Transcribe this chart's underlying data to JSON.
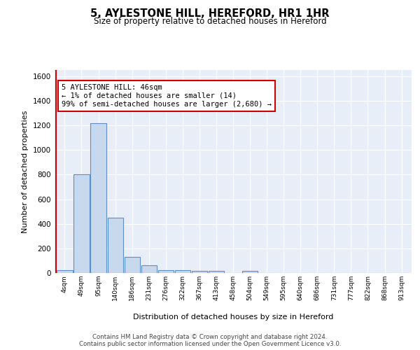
{
  "title": "5, AYLESTONE HILL, HEREFORD, HR1 1HR",
  "subtitle": "Size of property relative to detached houses in Hereford",
  "xlabel": "Distribution of detached houses by size in Hereford",
  "ylabel": "Number of detached properties",
  "bin_labels": [
    "4sqm",
    "49sqm",
    "95sqm",
    "140sqm",
    "186sqm",
    "231sqm",
    "276sqm",
    "322sqm",
    "367sqm",
    "413sqm",
    "458sqm",
    "504sqm",
    "549sqm",
    "595sqm",
    "640sqm",
    "686sqm",
    "731sqm",
    "777sqm",
    "822sqm",
    "868sqm",
    "913sqm"
  ],
  "bar_values": [
    20,
    800,
    1220,
    450,
    130,
    60,
    25,
    22,
    15,
    15,
    0,
    15,
    0,
    0,
    0,
    0,
    0,
    0,
    0,
    0,
    0
  ],
  "bar_color": "#c9d9ed",
  "bar_edge_color": "#5b8ec4",
  "background_color": "#e8eef8",
  "grid_color": "#ffffff",
  "annotation_text": "5 AYLESTONE HILL: 46sqm\n← 1% of detached houses are smaller (14)\n99% of semi-detached houses are larger (2,680) →",
  "annotation_box_color": "#ffffff",
  "annotation_box_edge": "#cc0000",
  "ylim": [
    0,
    1650
  ],
  "yticks": [
    0,
    200,
    400,
    600,
    800,
    1000,
    1200,
    1400,
    1600
  ],
  "footer_line1": "Contains HM Land Registry data © Crown copyright and database right 2024.",
  "footer_line2": "Contains public sector information licensed under the Open Government Licence v3.0."
}
